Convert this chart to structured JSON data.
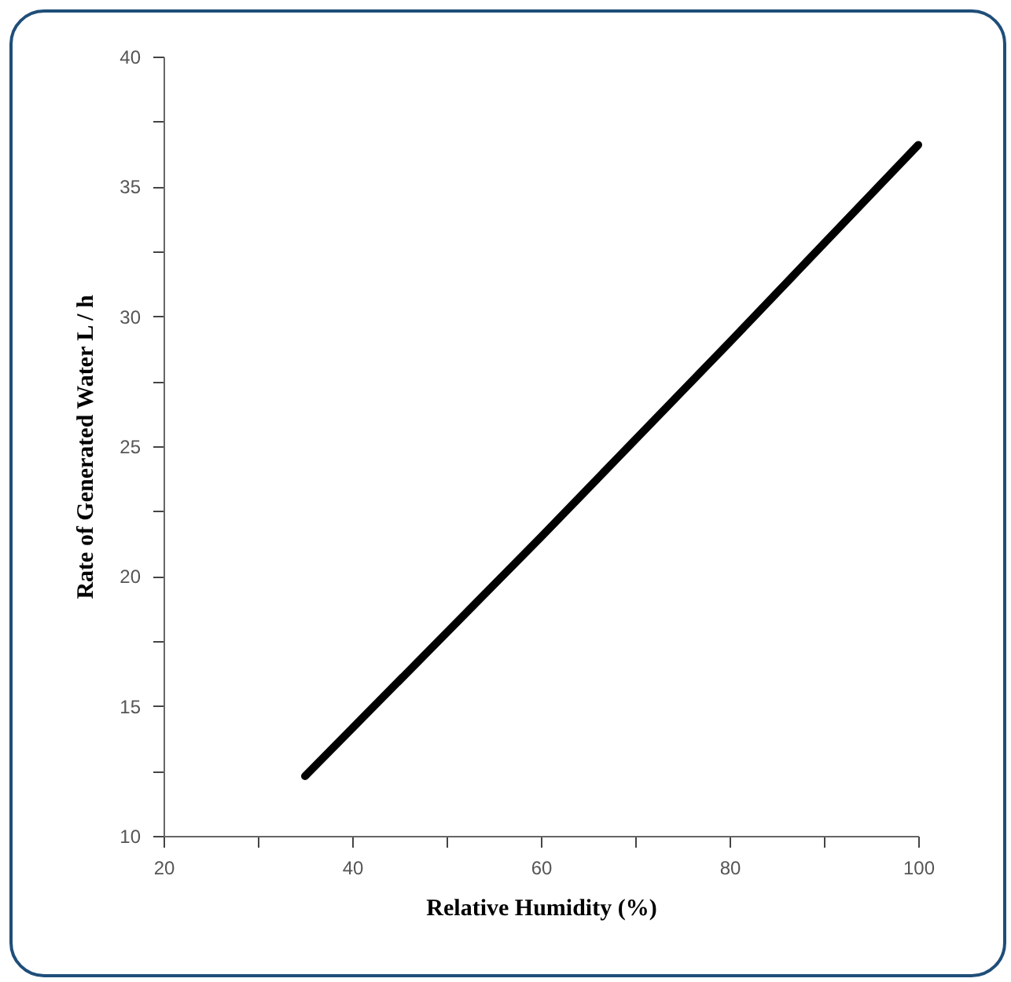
{
  "chart_data": {
    "type": "line",
    "xlabel": "Relative Humidity (%)",
    "ylabel": "Rate of Generated Water L / h",
    "x": [
      35,
      60,
      80,
      100
    ],
    "series": [
      {
        "color": "#000000",
        "values": [
          12.3,
          21.5,
          29.0,
          36.6
        ]
      }
    ],
    "xlim": [
      20,
      100
    ],
    "xticks": [
      20,
      {
        "value": 30,
        "label": null
      },
      40,
      {
        "value": 50,
        "label": null
      },
      60,
      {
        "value": 70,
        "label": null
      },
      80,
      {
        "value": 90,
        "label": null
      },
      100
    ],
    "ylim": [
      10,
      40
    ],
    "yticks": [
      10,
      {
        "value": 12.5,
        "label": null
      },
      15,
      {
        "value": 17.5,
        "label": null
      },
      20,
      {
        "value": 22.5,
        "label": null
      },
      25,
      {
        "value": 27.5,
        "label": null
      },
      30,
      {
        "value": 32.5,
        "label": null
      },
      35,
      {
        "value": 37.5,
        "label": null
      },
      40
    ],
    "grid": false,
    "marker": "none",
    "line_style": "solid"
  }
}
